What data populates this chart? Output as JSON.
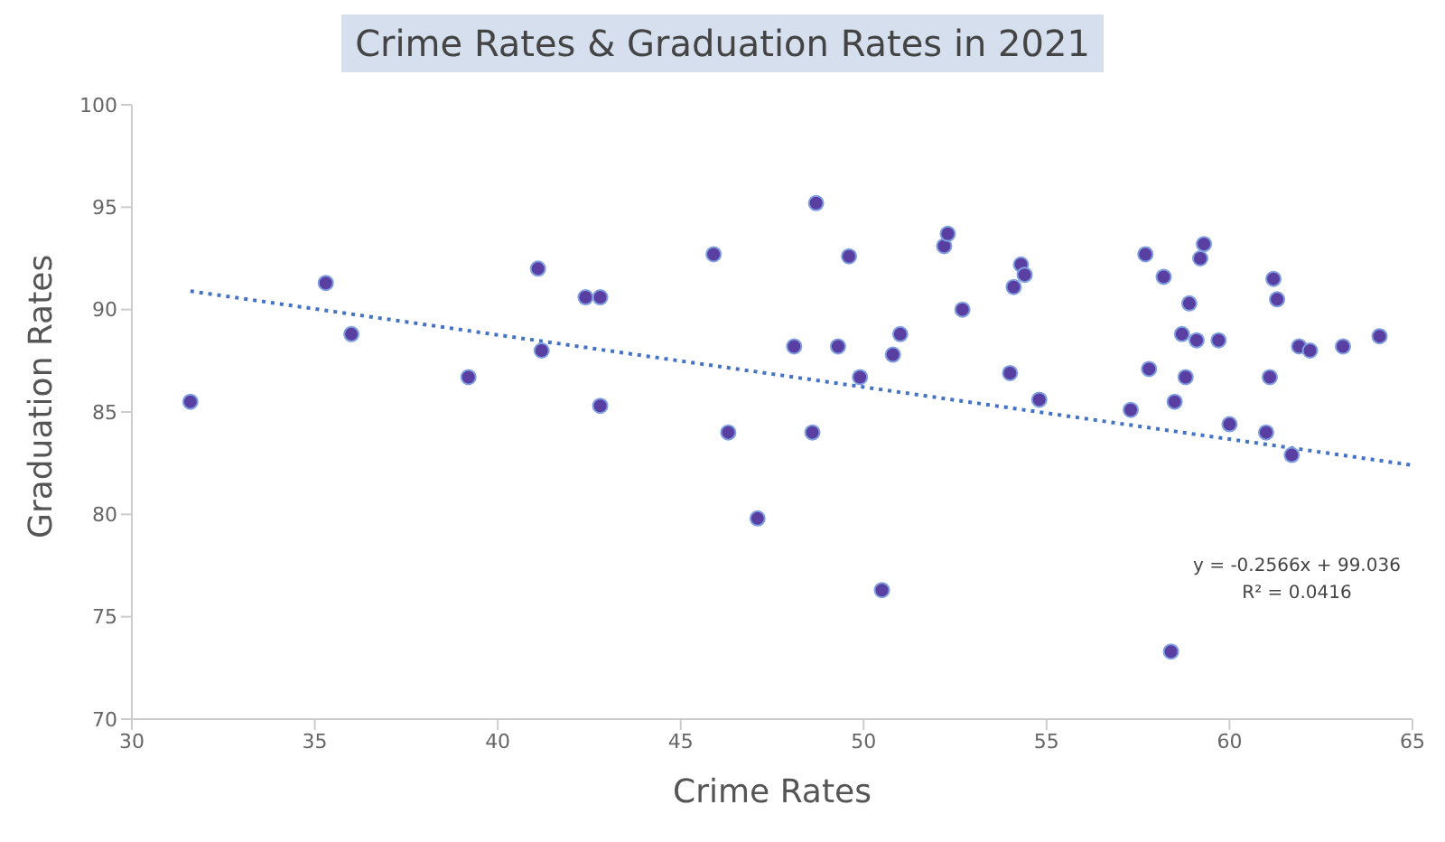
{
  "chart_data": {
    "type": "scatter",
    "title": "Crime Rates & Graduation Rates in 2021",
    "xlabel": "Crime Rates",
    "ylabel": "Graduation Rates",
    "xlim": [
      30,
      65
    ],
    "xticks": [
      30,
      35,
      40,
      45,
      50,
      55,
      60,
      65
    ],
    "ylim": [
      70,
      100
    ],
    "yticks": [
      70,
      75,
      80,
      85,
      90,
      95,
      100
    ],
    "grid": false,
    "legend": false,
    "marker": "circle",
    "annotations": [
      "y = -0.2566x + 99.036",
      "R² = 0.0416"
    ],
    "series": [
      {
        "type": "scatter",
        "color": "#5a3fa3",
        "x": [
          31.6,
          35.3,
          36.0,
          39.2,
          41.1,
          41.2,
          42.4,
          42.8,
          42.8,
          45.9,
          46.3,
          47.1,
          48.1,
          48.6,
          48.7,
          49.3,
          49.6,
          49.9,
          50.5,
          50.8,
          51.0,
          52.2,
          52.3,
          52.7,
          54.0,
          54.1,
          54.3,
          54.4,
          54.8,
          57.3,
          57.7,
          57.8,
          58.2,
          58.4,
          58.5,
          58.7,
          58.8,
          58.9,
          59.1,
          59.2,
          59.3,
          59.7,
          60.0,
          61.0,
          61.1,
          61.2,
          61.3,
          61.7,
          61.9,
          62.2,
          63.1,
          64.1
        ],
        "values": [
          85.5,
          91.3,
          88.8,
          86.7,
          92.0,
          88.0,
          90.6,
          90.6,
          85.3,
          92.7,
          84.0,
          79.8,
          88.2,
          84.0,
          95.2,
          88.2,
          92.6,
          86.7,
          76.3,
          87.8,
          88.8,
          93.1,
          93.7,
          90.0,
          86.9,
          91.1,
          92.2,
          91.7,
          85.6,
          85.1,
          92.7,
          87.1,
          91.6,
          73.3,
          85.5,
          88.8,
          86.7,
          90.3,
          88.5,
          92.5,
          93.2,
          88.5,
          84.4,
          84.0,
          86.7,
          91.5,
          90.5,
          82.9,
          88.2,
          88.0,
          88.2,
          88.7
        ]
      },
      {
        "type": "line",
        "color": "#4472c4",
        "line_style": "dotted",
        "marker": "none",
        "x": [
          31.6,
          65
        ],
        "values": [
          90.9,
          82.4
        ]
      }
    ]
  }
}
